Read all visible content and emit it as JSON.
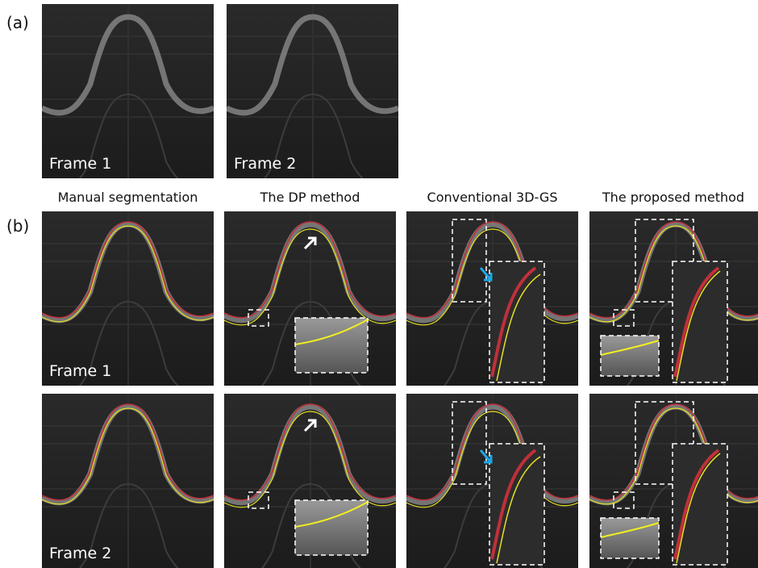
{
  "panel_a": {
    "label": "(a)",
    "frames": [
      "Frame 1",
      "Frame 2"
    ]
  },
  "panel_b": {
    "label": "(b)",
    "columns": [
      "Manual segmentation",
      "The DP method",
      "Conventional 3D-GS",
      "The proposed method"
    ],
    "rows": [
      "Frame 1",
      "Frame 2"
    ]
  }
}
